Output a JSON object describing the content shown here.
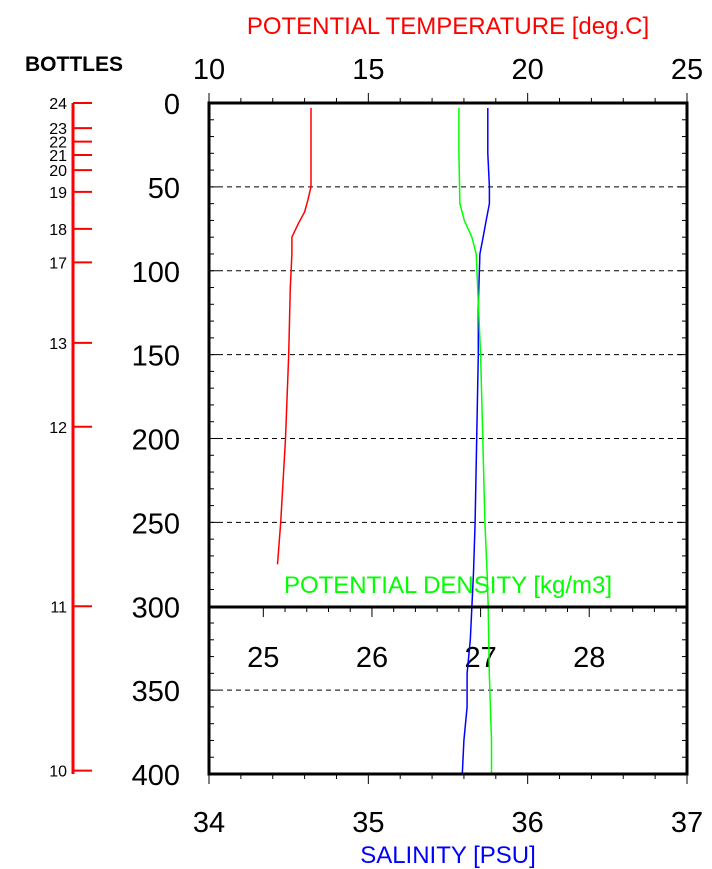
{
  "chart_data": {
    "type": "line",
    "title_top": "POTENTIAL TEMPERATURE [deg.C]",
    "title_bottom": "SALINITY [PSU]",
    "density_label": "POTENTIAL DENSITY [kg/m3]",
    "bottles_label": "BOTTLES",
    "y_axis": {
      "label": "",
      "ticks": [
        "0",
        "50",
        "100",
        "150",
        "200",
        "250",
        "300",
        "350",
        "400"
      ],
      "ylim": [
        0,
        400
      ],
      "inverted": true
    },
    "top_axis": {
      "quantity": "Potential temperature",
      "ticks": [
        "10",
        "15",
        "20",
        "25"
      ],
      "xlim": [
        10,
        25
      ],
      "color": "#ff0000"
    },
    "bottom_axis": {
      "quantity": "Salinity",
      "ticks": [
        "34",
        "35",
        "36",
        "37"
      ],
      "xlim": [
        34,
        37
      ],
      "color": "#0000ff"
    },
    "density_axis": {
      "quantity": "Potential density",
      "ticks": [
        "25",
        "26",
        "27",
        "28"
      ],
      "xlim": [
        24.5,
        28.9
      ],
      "color": "#00ff00"
    },
    "grid_depths": [
      50,
      100,
      150,
      200,
      250,
      350
    ],
    "grid": true,
    "series": [
      {
        "key": "temperature",
        "color": "#ff0000",
        "axis": "top",
        "points": [
          [
            13.2,
            3
          ],
          [
            13.2,
            10
          ],
          [
            13.2,
            30
          ],
          [
            13.2,
            50
          ],
          [
            13.1,
            58
          ],
          [
            13.0,
            65
          ],
          [
            12.8,
            72
          ],
          [
            12.6,
            80
          ],
          [
            12.6,
            90
          ],
          [
            12.55,
            110
          ],
          [
            12.5,
            150
          ],
          [
            12.4,
            200
          ],
          [
            12.25,
            250
          ],
          [
            12.15,
            275
          ]
        ]
      },
      {
        "key": "salinity",
        "color": "#0000ff",
        "axis": "bottom",
        "points": [
          [
            35.75,
            3
          ],
          [
            35.75,
            30
          ],
          [
            35.76,
            50
          ],
          [
            35.76,
            60
          ],
          [
            35.74,
            70
          ],
          [
            35.72,
            80
          ],
          [
            35.7,
            90
          ],
          [
            35.69,
            120
          ],
          [
            35.69,
            150
          ],
          [
            35.68,
            200
          ],
          [
            35.67,
            250
          ],
          [
            35.66,
            280
          ],
          [
            35.65,
            300
          ],
          [
            35.64,
            320
          ],
          [
            35.62,
            340
          ],
          [
            35.62,
            360
          ],
          [
            35.6,
            380
          ],
          [
            35.59,
            400
          ]
        ]
      },
      {
        "key": "density",
        "color": "#00ff00",
        "axis": "density",
        "points": [
          [
            26.8,
            3
          ],
          [
            26.8,
            30
          ],
          [
            26.81,
            60
          ],
          [
            26.85,
            70
          ],
          [
            26.92,
            80
          ],
          [
            26.96,
            90
          ],
          [
            26.98,
            120
          ],
          [
            27.0,
            150
          ],
          [
            27.02,
            200
          ],
          [
            27.04,
            250
          ],
          [
            27.06,
            280
          ],
          [
            27.07,
            300
          ],
          [
            27.08,
            340
          ],
          [
            27.09,
            360
          ],
          [
            27.1,
            380
          ],
          [
            27.1,
            400
          ]
        ]
      }
    ],
    "bottles": [
      {
        "label": "24",
        "depth": 0
      },
      {
        "label": "23",
        "depth": 15
      },
      {
        "label": "22",
        "depth": 23
      },
      {
        "label": "21",
        "depth": 31
      },
      {
        "label": "20",
        "depth": 40
      },
      {
        "label": "19",
        "depth": 53
      },
      {
        "label": "18",
        "depth": 75
      },
      {
        "label": "17",
        "depth": 95
      },
      {
        "label": "13",
        "depth": 143
      },
      {
        "label": "12",
        "depth": 193
      },
      {
        "label": "11",
        "depth": 300
      },
      {
        "label": "10",
        "depth": 398
      }
    ]
  }
}
